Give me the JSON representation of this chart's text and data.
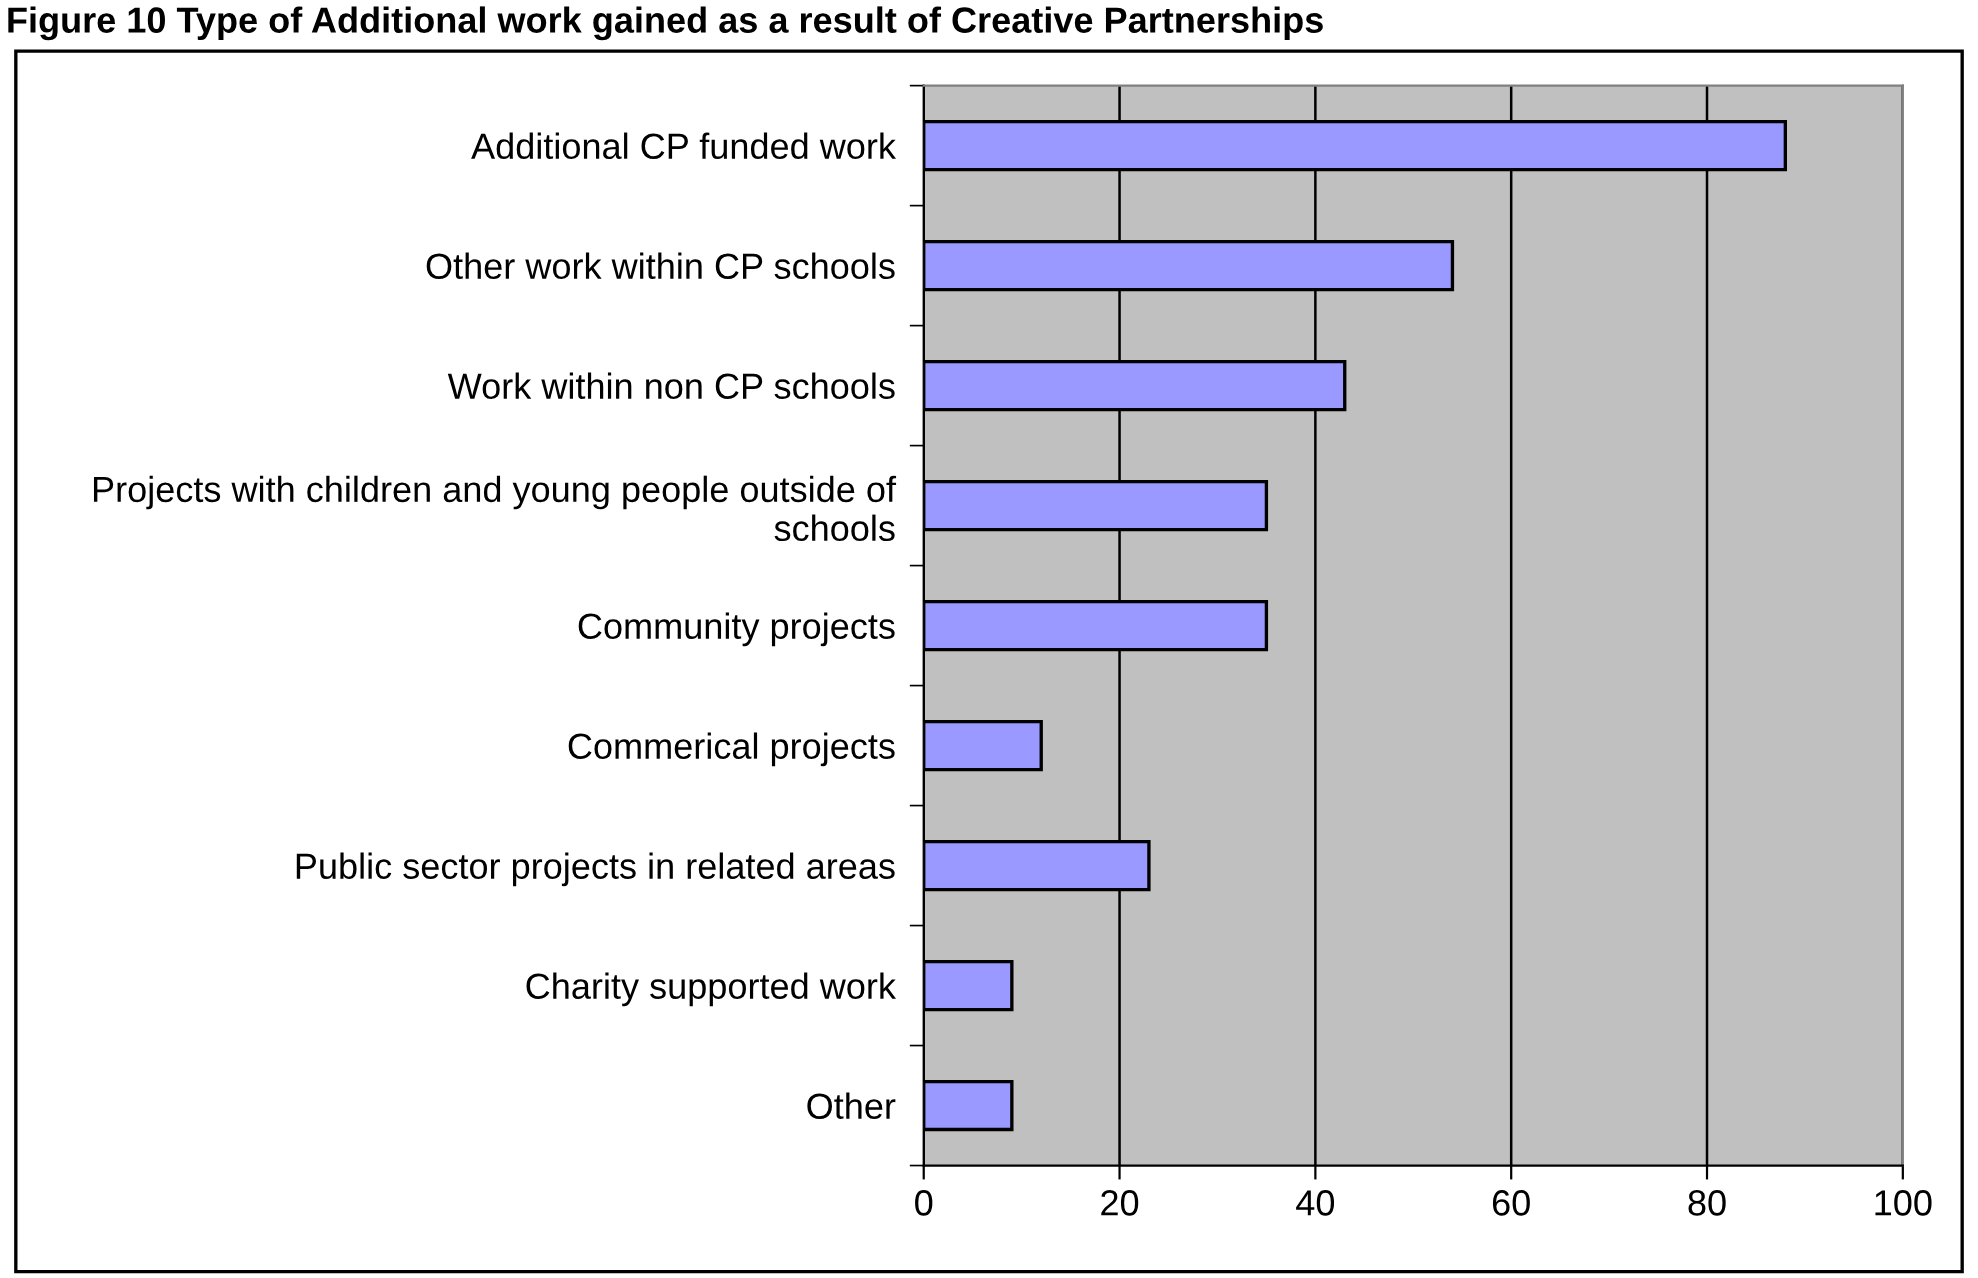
{
  "chart_data": {
    "type": "bar",
    "orientation": "horizontal",
    "title": "Figure 10 Type of Additional work gained as a result of Creative Partnerships",
    "categories": [
      "Additional CP funded work",
      "Other work within CP schools",
      "Work within non CP schools",
      "Projects with children and young people outside of schools",
      "Community projects",
      "Commerical projects",
      "Public sector projects in related areas",
      "Charity supported work",
      "Other"
    ],
    "values": [
      88,
      54,
      43,
      35,
      35,
      12,
      23,
      9,
      9
    ],
    "color": "#9999ff",
    "xlim": [
      0,
      100
    ],
    "xticks": [
      0,
      20,
      40,
      60,
      80,
      100
    ],
    "grid": "x"
  }
}
